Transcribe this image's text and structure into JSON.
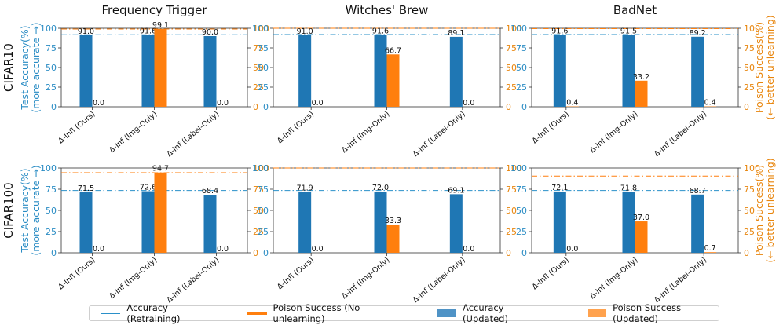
{
  "colors": {
    "accuracy": "#1f77b4",
    "poison": "#ff7f0e",
    "retrain_line": "#2a90c9",
    "baseline_line": "#ff7f0e",
    "left_axis_label": "#2a8cc4",
    "right_axis_label": "#e8850c"
  },
  "legend": {
    "retraining": "Accuracy (Retraining)",
    "no_unlearning": "Poison Success (No unlearning)",
    "acc_updated": "Accuracy (Updated)",
    "poison_updated": "Poison Success (Updated)"
  },
  "column_titles": [
    "Frequency Trigger",
    "Witches' Brew",
    "BadNet"
  ],
  "row_labels": [
    "CIFAR10",
    "CIFAR100"
  ],
  "left_axis_label": [
    "Test Accuracy(%)",
    "(more accurate →)"
  ],
  "right_axis_label": [
    "Poison Success(%)",
    "(← better unlearning)"
  ],
  "chart_data": [
    {
      "type": "bar",
      "dataset": "CIFAR10",
      "attack": "Frequency Trigger",
      "categories": [
        "Δ-Infl (Ours)",
        "Δ-Inf (Img-Only)",
        "Δ-Inf (Label-Only)"
      ],
      "series": [
        {
          "name": "Accuracy (Updated)",
          "values": [
            91.0,
            91.6,
            90.0
          ],
          "labels": [
            "91.0",
            "91.6",
            "90.0"
          ]
        },
        {
          "name": "Poison Success (Updated)",
          "values": [
            0.0,
            99.1,
            0.0
          ],
          "labels": [
            "0.0",
            "99.1",
            "0.0"
          ]
        }
      ],
      "retraining_accuracy": 91.8,
      "poison_no_unlearning": 99.0,
      "ylim": [
        0,
        100
      ],
      "yticks": [
        "0",
        "25",
        "50",
        "75",
        "100"
      ]
    },
    {
      "type": "bar",
      "dataset": "CIFAR10",
      "attack": "Witches' Brew",
      "categories": [
        "Δ-Infl (Ours)",
        "Δ-Inf (Img-Only)",
        "Δ-Inf (Label-Only)"
      ],
      "series": [
        {
          "name": "Accuracy (Updated)",
          "values": [
            91.0,
            91.6,
            89.1
          ],
          "labels": [
            "91.0",
            "91.6",
            "89.1"
          ]
        },
        {
          "name": "Poison Success (Updated)",
          "values": [
            0.0,
            66.7,
            0.0
          ],
          "labels": [
            "0.0",
            "66.7",
            "0.0"
          ]
        }
      ],
      "retraining_accuracy": 92.0,
      "poison_no_unlearning": 100.0,
      "ylim": [
        0,
        100
      ],
      "yticks": [
        "0",
        "25",
        "50",
        "75",
        "100"
      ]
    },
    {
      "type": "bar",
      "dataset": "CIFAR10",
      "attack": "BadNet",
      "categories": [
        "Δ-Infl (Ours)",
        "Δ-Inf (Img-Only)",
        "Δ-Inf (Label-Only)"
      ],
      "series": [
        {
          "name": "Accuracy (Updated)",
          "values": [
            91.6,
            91.5,
            89.2
          ],
          "labels": [
            "91.6",
            "91.5",
            "89.2"
          ]
        },
        {
          "name": "Poison Success (Updated)",
          "values": [
            0.4,
            33.2,
            0.4
          ],
          "labels": [
            "0.4",
            "33.2",
            "0.4"
          ]
        }
      ],
      "retraining_accuracy": 92.0,
      "poison_no_unlearning": 99.5,
      "ylim": [
        0,
        100
      ],
      "yticks": [
        "0",
        "25",
        "50",
        "75",
        "100"
      ]
    },
    {
      "type": "bar",
      "dataset": "CIFAR100",
      "attack": "Frequency Trigger",
      "categories": [
        "Δ-Infl (Ours)",
        "Δ-Inf (Img-Only)",
        "Δ-Inf (Label-Only)"
      ],
      "series": [
        {
          "name": "Accuracy (Updated)",
          "values": [
            71.5,
            72.6,
            68.4
          ],
          "labels": [
            "71.5",
            "72.6",
            "68.4"
          ]
        },
        {
          "name": "Poison Success (Updated)",
          "values": [
            0.0,
            94.7,
            0.0
          ],
          "labels": [
            "0.0",
            "94.7",
            "0.0"
          ]
        }
      ],
      "retraining_accuracy": 73.5,
      "poison_no_unlearning": 94.5,
      "ylim": [
        0,
        100
      ],
      "yticks": [
        "0",
        "25",
        "50",
        "75",
        "100"
      ]
    },
    {
      "type": "bar",
      "dataset": "CIFAR100",
      "attack": "Witches' Brew",
      "categories": [
        "Δ-Infl (Ours)",
        "Δ-Inf (Img-Only)",
        "Δ-Inf (Label-Only)"
      ],
      "series": [
        {
          "name": "Accuracy (Updated)",
          "values": [
            71.9,
            72.0,
            69.1
          ],
          "labels": [
            "71.9",
            "72.0",
            "69.1"
          ]
        },
        {
          "name": "Poison Success (Updated)",
          "values": [
            0.0,
            33.3,
            0.0
          ],
          "labels": [
            "0.0",
            "33.3",
            "0.0"
          ]
        }
      ],
      "retraining_accuracy": 73.5,
      "poison_no_unlearning": 100.0,
      "ylim": [
        0,
        100
      ],
      "yticks": [
        "0",
        "25",
        "50",
        "75",
        "100"
      ]
    },
    {
      "type": "bar",
      "dataset": "CIFAR100",
      "attack": "BadNet",
      "categories": [
        "Δ-Infl (Ours)",
        "Δ-Inf (Img-Only)",
        "Δ-Inf (Label-Only)"
      ],
      "series": [
        {
          "name": "Accuracy (Updated)",
          "values": [
            72.1,
            71.8,
            68.7
          ],
          "labels": [
            "72.1",
            "71.8",
            "68.7"
          ]
        },
        {
          "name": "Poison Success (Updated)",
          "values": [
            0.0,
            37.0,
            0.7
          ],
          "labels": [
            "0.0",
            "37.0",
            "0.7"
          ]
        }
      ],
      "retraining_accuracy": 73.5,
      "poison_no_unlearning": 90.5,
      "ylim": [
        0,
        100
      ],
      "yticks": [
        "0",
        "25",
        "50",
        "75",
        "100"
      ]
    }
  ]
}
